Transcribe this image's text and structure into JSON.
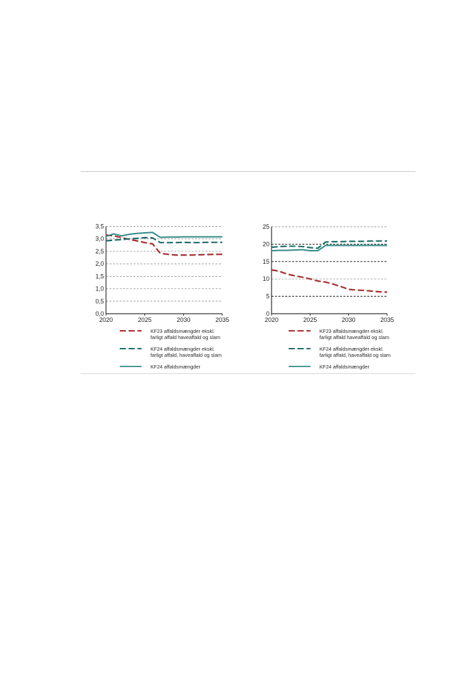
{
  "colors": {
    "kf23_dashed": "#a82b2b",
    "kf24_dashed": "#1e6f6b",
    "kf24_solid": "#2f8a86",
    "grid": "#808080",
    "grid_dark": "#000000",
    "axis": "#000000"
  },
  "chart_data": [
    {
      "type": "line",
      "xlim": [
        2020,
        2035
      ],
      "ylim": [
        0.0,
        3.5
      ],
      "x_ticks": [
        "2020",
        "2025",
        "2030",
        "2035"
      ],
      "y_ticks": [
        "0,0",
        "0,5",
        "1,0",
        "1,5",
        "2,0",
        "2,5",
        "3,0",
        "3,5"
      ],
      "grid": true,
      "legend_position": "bottom",
      "series": [
        {
          "name": "KF23 affaldsmængder ekskl. farligt affald haveaffald og slam",
          "legend_lines": [
            "KF23 affaldsmængder ekskl.",
            "farligt affald haveaffald og slam"
          ],
          "style": "dashed",
          "color_key": "kf23_dashed",
          "x": [
            2020,
            2021,
            2022,
            2023,
            2024,
            2025,
            2026,
            2027,
            2028,
            2029,
            2030,
            2031,
            2032,
            2033,
            2034,
            2035
          ],
          "y": [
            3.15,
            3.12,
            3.05,
            2.98,
            2.92,
            2.85,
            2.8,
            2.42,
            2.38,
            2.35,
            2.35,
            2.35,
            2.36,
            2.37,
            2.38,
            2.38
          ]
        },
        {
          "name": "KF24 affaldsmængder ekskl. farligt affald, haveaffald og slam",
          "legend_lines": [
            "KF24 affaldsmængder ekskl.",
            " farligt affald, haveaffald og slam"
          ],
          "style": "dashed",
          "color_key": "kf24_dashed",
          "x": [
            2020,
            2021,
            2022,
            2023,
            2024,
            2025,
            2026,
            2027,
            2028,
            2029,
            2030,
            2031,
            2032,
            2033,
            2034,
            2035
          ],
          "y": [
            2.92,
            2.95,
            2.97,
            3.0,
            3.02,
            3.05,
            3.04,
            2.85,
            2.85,
            2.85,
            2.86,
            2.85,
            2.85,
            2.86,
            2.86,
            2.86
          ]
        },
        {
          "name": "KF24 affaldsmængder",
          "legend_lines": [
            "KF24 affaldsmængder"
          ],
          "style": "solid",
          "color_key": "kf24_solid",
          "x": [
            2020,
            2021,
            2022,
            2023,
            2024,
            2025,
            2026,
            2027,
            2028,
            2029,
            2030,
            2031,
            2032,
            2033,
            2034,
            2035
          ],
          "y": [
            3.1,
            3.2,
            3.12,
            3.18,
            3.22,
            3.24,
            3.26,
            3.06,
            3.07,
            3.07,
            3.08,
            3.08,
            3.08,
            3.08,
            3.08,
            3.08
          ]
        }
      ]
    },
    {
      "type": "line",
      "xlim": [
        2020,
        2035
      ],
      "ylim": [
        0,
        25
      ],
      "x_ticks": [
        "2020",
        "2025",
        "2030",
        "2035"
      ],
      "y_ticks": [
        "0",
        "5",
        "10",
        "15",
        "20",
        "25"
      ],
      "grid": true,
      "legend_position": "bottom",
      "series": [
        {
          "name": "KF23 affaldsmængder ekskl. farligt affald haveaffald og slam",
          "legend_lines": [
            "KF23 affaldsmængder ekskl.",
            "farligt affald haveaffald og slam"
          ],
          "style": "dashed",
          "color_key": "kf23_dashed",
          "x": [
            2020,
            2021,
            2022,
            2023,
            2024,
            2025,
            2026,
            2027,
            2028,
            2029,
            2030,
            2031,
            2032,
            2033,
            2034,
            2035
          ],
          "y": [
            12.6,
            12.2,
            11.4,
            10.9,
            10.5,
            10.0,
            9.4,
            9.1,
            8.5,
            7.8,
            7.0,
            6.8,
            6.7,
            6.5,
            6.3,
            6.2
          ]
        },
        {
          "name": "KF24 affaldsmængder ekskl. farligt affald, haveaffald og slam",
          "legend_lines": [
            "KF24 affaldsmængder ekskl.",
            " farligt affald, haveaffald og slam"
          ],
          "style": "dashed",
          "color_key": "kf24_dashed",
          "x": [
            2020,
            2021,
            2022,
            2023,
            2024,
            2025,
            2026,
            2027,
            2028,
            2029,
            2030,
            2031,
            2032,
            2033,
            2034,
            2035
          ],
          "y": [
            19.1,
            19.3,
            19.4,
            19.4,
            19.3,
            19.0,
            18.8,
            20.6,
            20.7,
            20.7,
            20.8,
            20.8,
            20.8,
            20.9,
            20.9,
            20.9
          ]
        },
        {
          "name": "KF24 affaldsmængder",
          "legend_lines": [
            "KF24 affaldsmængder"
          ],
          "style": "solid",
          "color_key": "kf24_solid",
          "x": [
            2020,
            2021,
            2022,
            2023,
            2024,
            2025,
            2026,
            2027,
            2028,
            2029,
            2030,
            2031,
            2032,
            2033,
            2034,
            2035
          ],
          "y": [
            18.1,
            18.2,
            18.2,
            18.3,
            18.4,
            18.1,
            18.1,
            19.6,
            19.6,
            19.6,
            19.6,
            19.6,
            19.6,
            19.6,
            19.6,
            19.6
          ]
        }
      ]
    }
  ]
}
